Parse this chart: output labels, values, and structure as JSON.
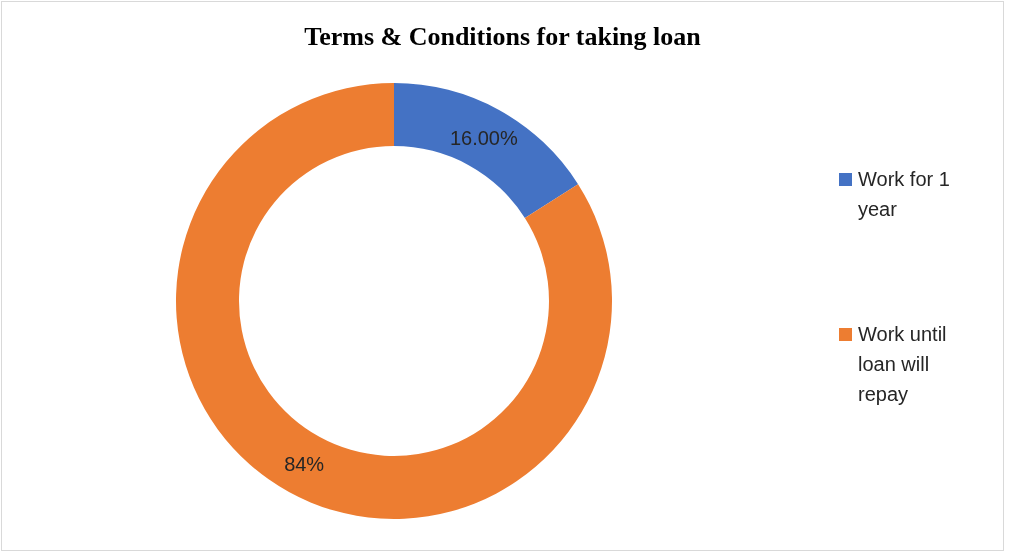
{
  "chart_data": {
    "type": "donut",
    "title": "Terms & Conditions for taking loan",
    "categories": [
      "Work for 1 year",
      "Work until loan will repay"
    ],
    "values": [
      16,
      84
    ],
    "colors": [
      "#4472c4",
      "#ed7d31"
    ],
    "value_labels": [
      "16.00%",
      "84%"
    ],
    "legend": "right"
  }
}
